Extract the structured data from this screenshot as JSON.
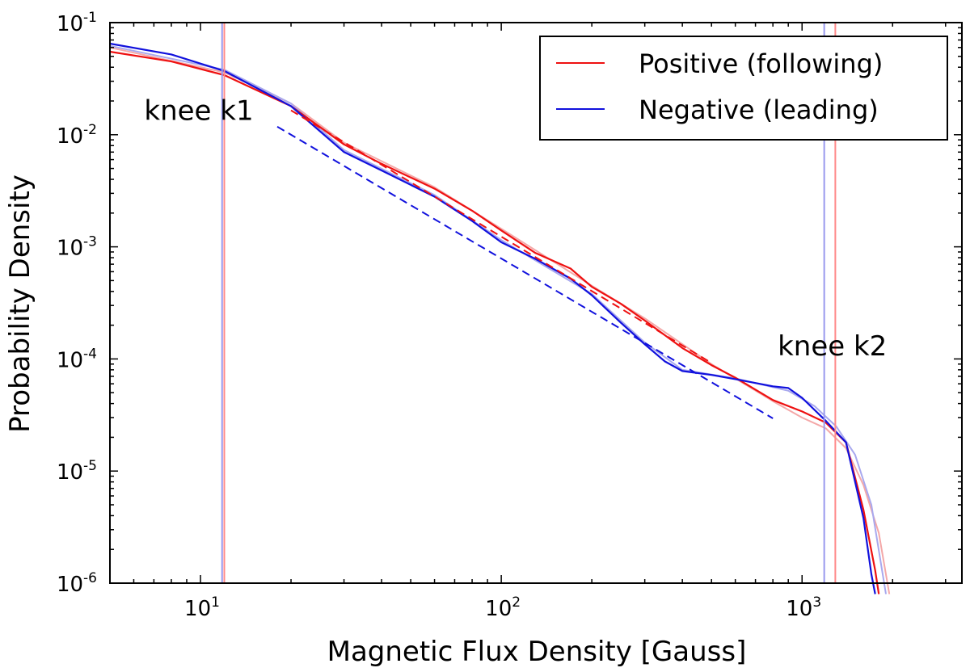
{
  "chart_data": {
    "type": "line",
    "title": "",
    "xlabel": "Magnetic Flux Density [Gauss]",
    "ylabel": "Probability Density",
    "xscale": "log",
    "yscale": "log",
    "xlim": [
      5,
      3400
    ],
    "ylim": [
      1e-06,
      0.1
    ],
    "grid": false,
    "legend_position": "top-right",
    "x_ticks": [
      {
        "base": "10",
        "exp": "1",
        "value": 10
      },
      {
        "base": "10",
        "exp": "2",
        "value": 100
      },
      {
        "base": "10",
        "exp": "3",
        "value": 1000
      }
    ],
    "y_ticks": [
      {
        "base": "10",
        "exp": "-1",
        "value": 0.1
      },
      {
        "base": "10",
        "exp": "-2",
        "value": 0.01
      },
      {
        "base": "10",
        "exp": "-3",
        "value": 0.001
      },
      {
        "base": "10",
        "exp": "-4",
        "value": 0.0001
      },
      {
        "base": "10",
        "exp": "-5",
        "value": 1e-05
      },
      {
        "base": "10",
        "exp": "-6",
        "value": 1e-06
      }
    ],
    "annotations": [
      {
        "text": "knee k1",
        "x": 6.5,
        "y": 0.0135
      },
      {
        "text": "knee k2",
        "x": 830,
        "y": 0.000108
      }
    ],
    "vertical_lines": [
      {
        "x": 11.8,
        "color": "#9999ee"
      },
      {
        "x": 12.0,
        "color": "#ff8a8a"
      },
      {
        "x": 1185,
        "color": "#9999ee"
      },
      {
        "x": 1290,
        "color": "#ff8a8a"
      }
    ],
    "series": [
      {
        "name": "Positive (following)",
        "color": "#ee1111",
        "legend": true,
        "points": [
          [
            5,
            0.055
          ],
          [
            8,
            0.045
          ],
          [
            12,
            0.034
          ],
          [
            20,
            0.018
          ],
          [
            30,
            0.0082
          ],
          [
            40,
            0.0055
          ],
          [
            60,
            0.0033
          ],
          [
            80,
            0.0021
          ],
          [
            100,
            0.0014
          ],
          [
            130,
            0.00088
          ],
          [
            170,
            0.00064
          ],
          [
            200,
            0.00044
          ],
          [
            250,
            0.00031
          ],
          [
            300,
            0.00022
          ],
          [
            400,
            0.000125
          ],
          [
            500,
            8.8e-05
          ],
          [
            600,
            6.8e-05
          ],
          [
            800,
            4.3e-05
          ],
          [
            1000,
            3.4e-05
          ],
          [
            1200,
            2.7e-05
          ],
          [
            1400,
            1.8e-05
          ],
          [
            1600,
            4.5e-06
          ],
          [
            1750,
            1.3e-06
          ],
          [
            1800,
            8e-07
          ]
        ]
      },
      {
        "name": "Negative (leading)",
        "color": "#1111dd",
        "legend": true,
        "points": [
          [
            5,
            0.065
          ],
          [
            8,
            0.052
          ],
          [
            12,
            0.037
          ],
          [
            20,
            0.018
          ],
          [
            30,
            0.007
          ],
          [
            40,
            0.0048
          ],
          [
            60,
            0.0028
          ],
          [
            80,
            0.0017
          ],
          [
            100,
            0.0011
          ],
          [
            130,
            0.00078
          ],
          [
            170,
            0.00052
          ],
          [
            200,
            0.00037
          ],
          [
            250,
            0.00021
          ],
          [
            300,
            0.000135
          ],
          [
            350,
            9.5e-05
          ],
          [
            400,
            7.8e-05
          ],
          [
            500,
            7.2e-05
          ],
          [
            600,
            6.6e-05
          ],
          [
            800,
            5.7e-05
          ],
          [
            900,
            5.5e-05
          ],
          [
            1000,
            4.5e-05
          ],
          [
            1200,
            2.8e-05
          ],
          [
            1400,
            1.8e-05
          ],
          [
            1600,
            3.8e-06
          ],
          [
            1700,
            1.2e-06
          ],
          [
            1750,
            8e-07
          ]
        ]
      },
      {
        "name": "Positive (following) alt",
        "color": "#f4a8a8",
        "legend": false,
        "points": [
          [
            5,
            0.06
          ],
          [
            12,
            0.036
          ],
          [
            20,
            0.019
          ],
          [
            30,
            0.0085
          ],
          [
            60,
            0.0034
          ],
          [
            100,
            0.00145
          ],
          [
            200,
            0.00045
          ],
          [
            300,
            0.00023
          ],
          [
            500,
            9e-05
          ],
          [
            800,
            4.2e-05
          ],
          [
            1000,
            3e-05
          ],
          [
            1200,
            2.4e-05
          ],
          [
            1400,
            1.6e-05
          ],
          [
            1600,
            7.5e-06
          ],
          [
            1800,
            2.8e-06
          ],
          [
            1950,
            8e-07
          ]
        ]
      },
      {
        "name": "Negative (leading) alt",
        "color": "#a8a8ee",
        "legend": false,
        "points": [
          [
            5,
            0.062
          ],
          [
            12,
            0.038
          ],
          [
            20,
            0.019
          ],
          [
            30,
            0.0073
          ],
          [
            60,
            0.0029
          ],
          [
            100,
            0.00115
          ],
          [
            200,
            0.00038
          ],
          [
            300,
            0.00014
          ],
          [
            400,
            8e-05
          ],
          [
            600,
            6.7e-05
          ],
          [
            900,
            5.2e-05
          ],
          [
            1100,
            3.8e-05
          ],
          [
            1300,
            2.5e-05
          ],
          [
            1500,
            1.4e-05
          ],
          [
            1700,
            5e-06
          ],
          [
            1900,
            8e-07
          ]
        ]
      },
      {
        "name": "Positive fit",
        "color": "#ee1111",
        "legend": false,
        "dashed": true,
        "points": [
          [
            20,
            0.0165
          ],
          [
            500,
            9.2e-05
          ]
        ]
      },
      {
        "name": "Negative fit",
        "color": "#1111dd",
        "legend": false,
        "dashed": true,
        "points": [
          [
            18,
            0.0118
          ],
          [
            800,
            2.95e-05
          ]
        ]
      }
    ]
  }
}
